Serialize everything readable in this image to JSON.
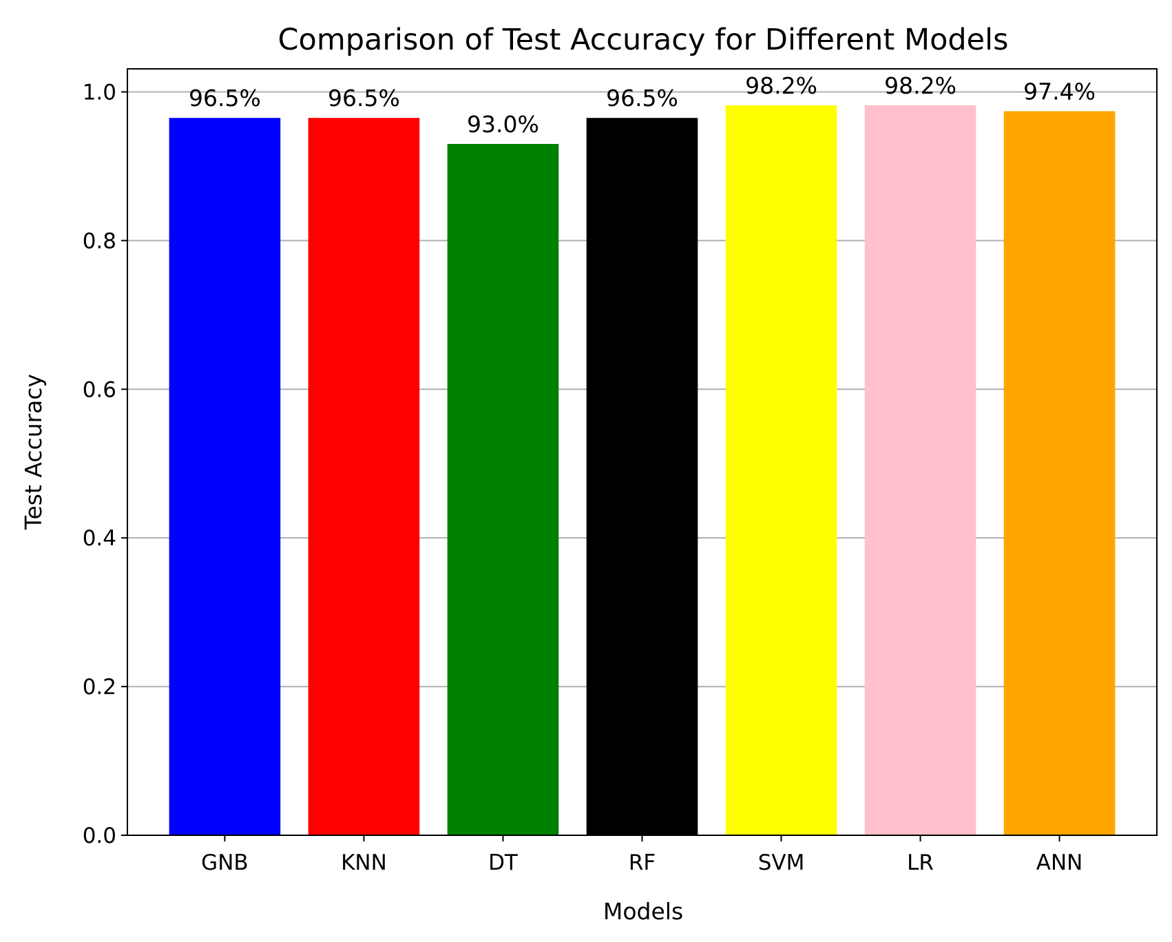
{
  "chart_data": {
    "type": "bar",
    "title": "Comparison of Test Accuracy for Different Models",
    "xlabel": "Models",
    "ylabel": "Test Accuracy",
    "categories": [
      "GNB",
      "KNN",
      "DT",
      "RF",
      "SVM",
      "LR",
      "ANN"
    ],
    "values": [
      0.965,
      0.965,
      0.93,
      0.965,
      0.982,
      0.982,
      0.974
    ],
    "data_labels": [
      "96.5%",
      "96.5%",
      "93.0%",
      "96.5%",
      "98.2%",
      "98.2%",
      "97.4%"
    ],
    "colors": [
      "#0000ff",
      "#ff0000",
      "#008000",
      "#000000",
      "#ffff00",
      "#ffc0cb",
      "#ffa500"
    ],
    "ylim": [
      0,
      1.031
    ],
    "yticks": [
      0.0,
      0.2,
      0.4,
      0.6,
      0.8,
      1.0
    ],
    "ytick_labels": [
      "0.0",
      "0.2",
      "0.4",
      "0.6",
      "0.8",
      "1.0"
    ],
    "grid": "y-axis",
    "grid_color": "#b0b0b0",
    "legend": "none"
  }
}
